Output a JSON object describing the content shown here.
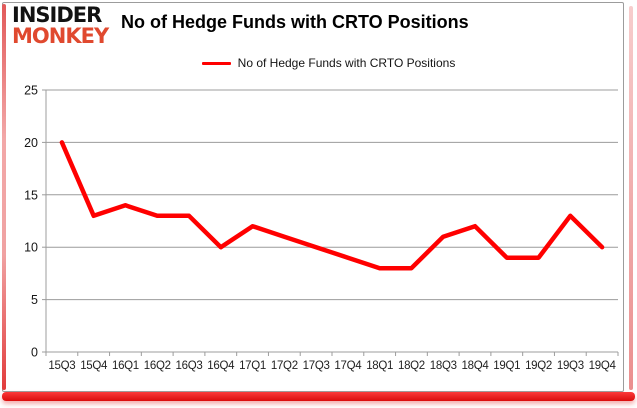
{
  "header": {
    "logo_line1": "INSIDER",
    "logo_line2": "MONKEY",
    "title": "No of Hedge Funds with CRTO Positions"
  },
  "legend": {
    "label": "No of Hedge Funds with CRTO Positions",
    "swatch_color": "#ff0000"
  },
  "chart_data": {
    "type": "line",
    "title": "No of Hedge Funds with CRTO Positions",
    "categories": [
      "15Q3",
      "15Q4",
      "16Q1",
      "16Q2",
      "16Q3",
      "16Q4",
      "17Q1",
      "17Q2",
      "17Q3",
      "17Q4",
      "18Q1",
      "18Q2",
      "18Q3",
      "18Q4",
      "19Q1",
      "19Q2",
      "19Q3",
      "19Q4"
    ],
    "series": [
      {
        "name": "No of Hedge Funds with CRTO Positions",
        "values": [
          20,
          13,
          14,
          13,
          13,
          10,
          12,
          11,
          10,
          9,
          8,
          8,
          11,
          12,
          9,
          9,
          13,
          10
        ]
      }
    ],
    "xlabel": "",
    "ylabel": "",
    "ylim": [
      0,
      25
    ],
    "yticks": [
      0,
      5,
      10,
      15,
      20,
      25
    ],
    "grid": true,
    "legend_position": "top-center",
    "line_color": "#ff0000",
    "grid_color": "#9c9c9c",
    "axis_color": "#9c9c9c"
  },
  "colors": {
    "logo_monkey_red": "#e0492f",
    "frame_border": "#9c9c9c",
    "bottom_bar_red": "#e31414"
  }
}
